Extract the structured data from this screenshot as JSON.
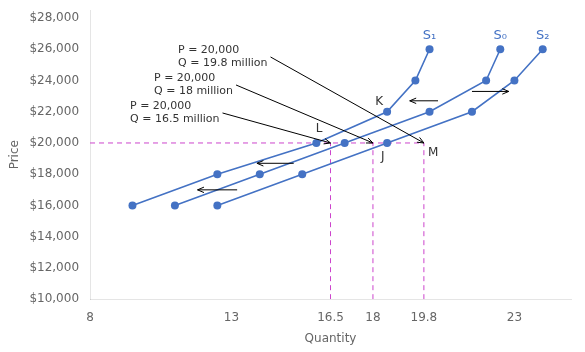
{
  "chart_data": {
    "type": "line",
    "xlabel": "Quantity",
    "ylabel": "Price",
    "xlim": [
      8,
      25
    ],
    "ylim": [
      10000,
      28500
    ],
    "xticks": [
      8,
      13,
      16.5,
      18,
      19.8,
      23
    ],
    "yticks": [
      {
        "value": 10000,
        "label": "$10,000"
      },
      {
        "value": 12000,
        "label": "$12,000"
      },
      {
        "value": 14000,
        "label": "$14,000"
      },
      {
        "value": 16000,
        "label": "$16,000"
      },
      {
        "value": 18000,
        "label": "$18,000"
      },
      {
        "value": 20000,
        "label": "$20,000"
      },
      {
        "value": 22000,
        "label": "$22,000"
      },
      {
        "value": 24000,
        "label": "$24,000"
      },
      {
        "value": 26000,
        "label": "$26,000"
      },
      {
        "value": 28000,
        "label": "$28,000"
      }
    ],
    "grid": false,
    "legend": false,
    "series": [
      {
        "name": "S₀",
        "color": "#4472C4",
        "marker": "circle",
        "line_style": "solid",
        "x": [
          11,
          14,
          17,
          20,
          22,
          22.5
        ],
        "values": [
          16000,
          18000,
          20000,
          22000,
          24000,
          26000
        ]
      },
      {
        "name": "S₁",
        "color": "#4472C4",
        "marker": "circle",
        "line_style": "solid",
        "x": [
          9.5,
          12.5,
          16,
          18.5,
          19.5,
          20
        ],
        "values": [
          16000,
          18000,
          20000,
          22000,
          24000,
          26000
        ]
      },
      {
        "name": "S₂",
        "color": "#4472C4",
        "marker": "circle",
        "line_style": "solid",
        "x": [
          12.5,
          15.5,
          18.5,
          21.5,
          23,
          24
        ],
        "values": [
          16000,
          18000,
          20000,
          22000,
          24000,
          26000
        ]
      },
      {
        "color": "#CC44CC",
        "marker": "none",
        "line_style": "dashed",
        "x": [
          8,
          19.8
        ],
        "values": [
          20000,
          20000
        ]
      },
      {
        "color": "#CC44CC",
        "marker": "none",
        "line_style": "dashed",
        "x": [
          16.5,
          16.5
        ],
        "values": [
          10000,
          20000
        ]
      },
      {
        "color": "#CC44CC",
        "marker": "none",
        "line_style": "dashed",
        "x": [
          18.0,
          18.0
        ],
        "values": [
          10000,
          20000
        ]
      },
      {
        "color": "#CC44CC",
        "marker": "none",
        "line_style": "dashed",
        "x": [
          19.8,
          19.8
        ],
        "values": [
          10000,
          20000
        ]
      }
    ],
    "annotations": [
      {
        "text": "L",
        "x": 16.5,
        "y": 20000,
        "arrow": false
      },
      {
        "text": "J",
        "x": 18.0,
        "y": 20000,
        "arrow": false
      },
      {
        "text": "K",
        "x": 18.5,
        "y": 22000,
        "arrow": false
      },
      {
        "text": "M",
        "x": 19.8,
        "y": 20000,
        "arrow": false
      },
      {
        "text": "P = 20,000\nQ = 16.5 million",
        "x": 16.5,
        "y": 20000,
        "arrow": true
      },
      {
        "text": "P = 20,000\nQ = 18 million",
        "x": 18.0,
        "y": 20000,
        "arrow": true
      },
      {
        "text": "P = 20,000\nQ = 19.8 million",
        "x": 19.8,
        "y": 20000,
        "arrow": true
      }
    ],
    "arrows": [
      {
        "from": [
          13.2,
          17000
        ],
        "to": [
          11.8,
          17000
        ]
      },
      {
        "from": [
          15.2,
          18700
        ],
        "to": [
          13.9,
          18700
        ]
      },
      {
        "from": [
          21.5,
          23300
        ],
        "to": [
          22.8,
          23300
        ]
      },
      {
        "from": [
          20.3,
          22700
        ],
        "to": [
          19.3,
          22700
        ]
      }
    ]
  }
}
